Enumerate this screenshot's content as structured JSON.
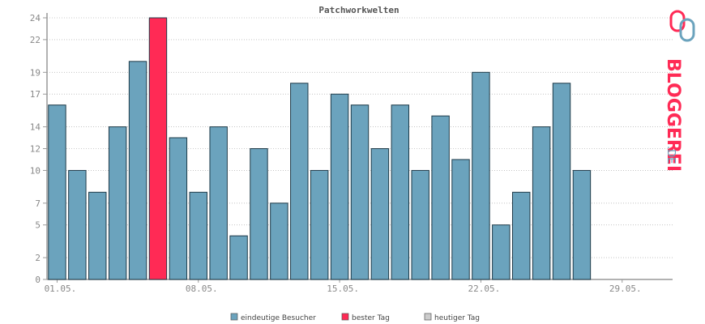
{
  "chart_data": {
    "type": "bar",
    "title": "Patchworkwelten",
    "days": 31,
    "values": [
      16,
      10,
      8,
      14,
      20,
      24,
      13,
      8,
      14,
      4,
      12,
      7,
      18,
      10,
      17,
      16,
      12,
      16,
      10,
      15,
      11,
      19,
      5,
      8,
      14,
      18,
      10,
      0,
      0,
      0,
      0
    ],
    "best_day_index": 5,
    "ylim": [
      0,
      24
    ],
    "y_ticks": [
      0,
      2,
      5,
      7,
      10,
      12,
      14,
      17,
      19,
      22,
      24
    ],
    "x_ticks": [
      {
        "index": 0,
        "label": "01.05."
      },
      {
        "index": 7,
        "label": "08.05."
      },
      {
        "index": 14,
        "label": "15.05."
      },
      {
        "index": 21,
        "label": "22.05."
      },
      {
        "index": 28,
        "label": "29.05."
      }
    ],
    "grid": true,
    "legend": [
      {
        "label": "eindeutige Besucher",
        "color": "#6ba3bd"
      },
      {
        "label": "bester Tag",
        "color": "#ff2a55"
      },
      {
        "label": "heutiger Tag",
        "color": "#cccccc"
      }
    ],
    "colors": {
      "bar": "#6ba3bd",
      "best": "#ff2a55",
      "outline": "#1e3a48"
    }
  },
  "logo": {
    "text": "BLOGGEREI",
    "suffix": ".DE"
  }
}
